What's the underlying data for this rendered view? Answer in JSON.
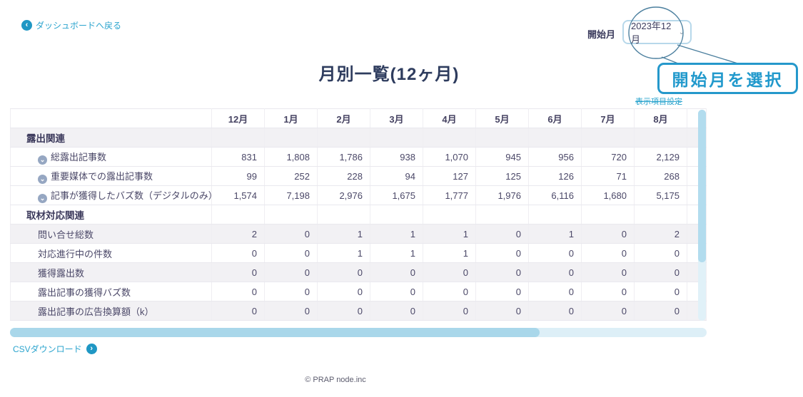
{
  "header": {
    "back_link": "ダッシュボードへ戻る",
    "start_month_label": "開始月",
    "start_month_value": "2023年12月",
    "display_settings_link": "表示項目設定",
    "callout": "開始月を選択"
  },
  "title": "月別一覧(12ヶ月)",
  "table": {
    "columns": [
      "12月",
      "1月",
      "2月",
      "3月",
      "4月",
      "5月",
      "6月",
      "7月",
      "8月"
    ],
    "sections": [
      {
        "label": "露出関連",
        "shaded": true,
        "rows": [
          {
            "label": "総露出記事数",
            "icon": "chevron-circle",
            "shaded": false,
            "values": [
              "831",
              "1,808",
              "1,786",
              "938",
              "1,070",
              "945",
              "956",
              "720",
              "2,129"
            ]
          },
          {
            "label": "重要媒体での露出記事数",
            "icon": "chevron-circle",
            "shaded": false,
            "values": [
              "99",
              "252",
              "228",
              "94",
              "127",
              "125",
              "126",
              "71",
              "268"
            ]
          },
          {
            "label": "記事が獲得したバズ数（デジタルのみ）",
            "icon": "chevron-circle",
            "shaded": false,
            "values": [
              "1,574",
              "7,198",
              "2,976",
              "1,675",
              "1,777",
              "1,976",
              "6,116",
              "1,680",
              "5,175"
            ]
          }
        ]
      },
      {
        "label": "取材対応関連",
        "shaded": false,
        "rows": [
          {
            "label": "問い合せ総数",
            "icon": null,
            "shaded": true,
            "values": [
              "2",
              "0",
              "1",
              "1",
              "1",
              "0",
              "1",
              "0",
              "2"
            ]
          },
          {
            "label": "対応進行中の件数",
            "icon": null,
            "shaded": false,
            "values": [
              "0",
              "0",
              "1",
              "1",
              "1",
              "0",
              "0",
              "0",
              "0"
            ]
          },
          {
            "label": "獲得露出数",
            "icon": null,
            "shaded": true,
            "values": [
              "0",
              "0",
              "0",
              "0",
              "0",
              "0",
              "0",
              "0",
              "0"
            ]
          },
          {
            "label": "露出記事の獲得バズ数",
            "icon": null,
            "shaded": false,
            "values": [
              "0",
              "0",
              "0",
              "0",
              "0",
              "0",
              "0",
              "0",
              "0"
            ]
          },
          {
            "label": "露出記事の広告換算額（k）",
            "icon": null,
            "shaded": true,
            "values": [
              "0",
              "0",
              "0",
              "0",
              "0",
              "0",
              "0",
              "0",
              "0"
            ]
          }
        ]
      }
    ]
  },
  "footer": {
    "csv_link": "CSVダウンロード",
    "copyright": "© PRAP node.inc"
  },
  "colors": {
    "accent_teal": "#2ba4ce",
    "callout_blue": "#2598cb",
    "heading_navy": "#2e3c5e",
    "table_text": "#4b4868",
    "row_shade": "#f2f1f4",
    "scrollbar_thumb": "#a9d7ea",
    "scrollbar_track": "#ddeff7"
  }
}
